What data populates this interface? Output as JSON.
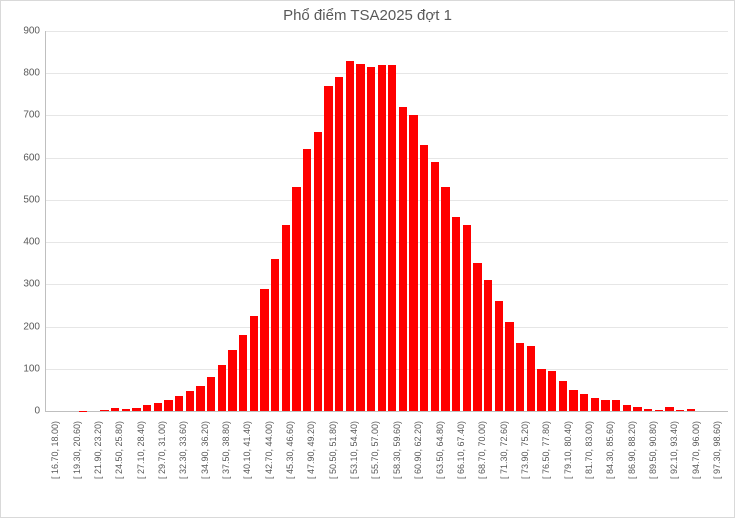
{
  "chart": {
    "type": "histogram",
    "title": "Phổ điểm TSA2025 đợt 1",
    "title_fontsize": 15,
    "title_color": "#595959",
    "background_color": "#ffffff",
    "frame_border_color": "#d9d9d9",
    "axis_color": "#bfbfbf",
    "grid_color": "#e6e6e6",
    "tick_label_color": "#595959",
    "tick_label_fontsize": 10,
    "x_label_fontsize": 9,
    "bar_color": "#ff0000",
    "bar_width_ratio": 0.78,
    "ylim": [
      0,
      900
    ],
    "ytick_step": 100,
    "categories": [
      "[ 16.70, 18.00)",
      "",
      "[ 19.30, 20.60)",
      "",
      "[ 21.90, 23.20)",
      "",
      "[ 24.50, 25.80)",
      "",
      "[ 27.10, 28.40)",
      "",
      "[ 29.70, 31.00)",
      "",
      "[ 32.30, 33.60)",
      "",
      "[ 34.90, 36.20)",
      "",
      "[ 37.50, 38.80)",
      "",
      "[ 40.10, 41.40)",
      "",
      "[ 42.70, 44.00)",
      "",
      "[ 45.30, 46.60)",
      "",
      "[ 47.90, 49.20)",
      "",
      "[ 50.50, 51.80)",
      "",
      "[ 53.10, 54.40)",
      "",
      "[ 55.70, 57.00)",
      "",
      "[ 58.30, 59.60)",
      "",
      "[ 60.90, 62.20)",
      "",
      "[ 63.50, 64.80)",
      "",
      "[ 66.10, 67.40)",
      "",
      "[ 68.70, 70.00)",
      "",
      "[ 71.30, 72.60)",
      "",
      "[ 73.90, 75.20)",
      "",
      "[ 76.50, 77.80)",
      "",
      "[ 79.10, 80.40)",
      "",
      "[ 81.70, 83.00)",
      "",
      "[ 84.30, 85.60)",
      "",
      "[ 86.90, 88.20)",
      "",
      "[ 89.50, 90.80)",
      "",
      "[ 92.10, 93.40)",
      "",
      "[ 94.70, 96.00)",
      "",
      "[ 97.30, 98.60)",
      ""
    ],
    "values": [
      0,
      0,
      0,
      1,
      0,
      3,
      6,
      5,
      8,
      15,
      20,
      25,
      35,
      48,
      60,
      80,
      110,
      145,
      180,
      225,
      290,
      360,
      440,
      530,
      620,
      660,
      770,
      790,
      830,
      822,
      815,
      820,
      820,
      720,
      700,
      630,
      590,
      530,
      460,
      440,
      350,
      310,
      260,
      210,
      160,
      155,
      100,
      95,
      70,
      50,
      40,
      30,
      25,
      25,
      15,
      10,
      5,
      3,
      10,
      3,
      5,
      0,
      0,
      0
    ]
  }
}
